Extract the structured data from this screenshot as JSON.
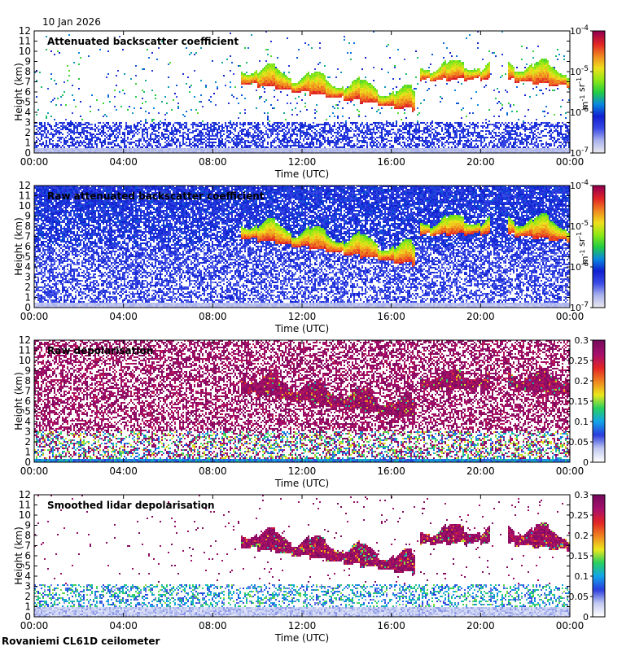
{
  "date_label": "10 Jan 2026",
  "footer_label": "Rovaniemi CL61D ceilometer",
  "colors": {
    "backscatter_scale": [
      "#e8e8ee",
      "#aab2ee",
      "#3a4ae6",
      "#1020d0",
      "#0a88e0",
      "#22cc44",
      "#8ee814",
      "#eee01c",
      "#f08820",
      "#e22424",
      "#98004e"
    ],
    "depol_scale": [
      "#ffffff",
      "#c0c8f0",
      "#2a3cdc",
      "#12a4ea",
      "#28d060",
      "#ece81c",
      "#f08420",
      "#e22424",
      "#a8106c",
      "#780a5e"
    ]
  },
  "chart_data": [
    {
      "type": "heatmap",
      "title": "Attenuated backscatter coefficient",
      "xlabel": "Time (UTC)",
      "ylabel": "Height (km)",
      "x_ticks": [
        "00:00",
        "04:00",
        "08:00",
        "12:00",
        "16:00",
        "20:00",
        "00:00"
      ],
      "y_ticks": [
        "0",
        "1",
        "2",
        "3",
        "4",
        "5",
        "6",
        "7",
        "8",
        "9",
        "10",
        "11",
        "12"
      ],
      "ylim": [
        0,
        12
      ],
      "colorbar": {
        "scale": "log",
        "range": [
          1e-07,
          0.0001
        ],
        "tick_labels": [
          "10-7",
          "10-6",
          "10-5",
          "10-4"
        ],
        "unit": "m-1 sr-1",
        "palette": "backscatter"
      },
      "background_noise": "sparse",
      "cloud_layers": [
        {
          "t_start": 9.3,
          "t_end": 17.1,
          "base_start_km": 6.9,
          "base_end_km": 4.2,
          "thickness_km": 2.3
        },
        {
          "t_start": 17.3,
          "t_end": 20.4,
          "base_start_km": 7.1,
          "base_end_km": 7.3,
          "thickness_km": 2.0
        },
        {
          "t_start": 21.2,
          "t_end": 24.0,
          "base_start_km": 7.2,
          "base_end_km": 6.5,
          "thickness_km": 2.4
        }
      ]
    },
    {
      "type": "heatmap",
      "title": "Raw attenuated backscatter coefficient",
      "xlabel": "Time (UTC)",
      "ylabel": "Height (km)",
      "x_ticks": [
        "00:00",
        "04:00",
        "08:00",
        "12:00",
        "16:00",
        "20:00",
        "00:00"
      ],
      "y_ticks": [
        "0",
        "1",
        "2",
        "3",
        "4",
        "5",
        "6",
        "7",
        "8",
        "9",
        "10",
        "11",
        "12"
      ],
      "ylim": [
        0,
        12
      ],
      "colorbar": {
        "scale": "log",
        "range": [
          1e-07,
          0.0001
        ],
        "tick_labels": [
          "10-7",
          "10-6",
          "10-5",
          "10-4"
        ],
        "unit": "m-1 sr-1",
        "palette": "backscatter"
      },
      "background_noise": "dense",
      "cloud_layers": [
        {
          "t_start": 9.3,
          "t_end": 17.1,
          "base_start_km": 6.9,
          "base_end_km": 4.2,
          "thickness_km": 2.3
        },
        {
          "t_start": 17.3,
          "t_end": 20.4,
          "base_start_km": 7.1,
          "base_end_km": 7.3,
          "thickness_km": 2.0
        },
        {
          "t_start": 21.2,
          "t_end": 24.0,
          "base_start_km": 7.2,
          "base_end_km": 6.5,
          "thickness_km": 2.4
        }
      ]
    },
    {
      "type": "heatmap",
      "title": "Raw depolarisation",
      "xlabel": "Time (UTC)",
      "ylabel": "Height (km)",
      "x_ticks": [
        "00:00",
        "04:00",
        "08:00",
        "12:00",
        "16:00",
        "20:00",
        "00:00"
      ],
      "y_ticks": [
        "0",
        "1",
        "2",
        "3",
        "4",
        "5",
        "6",
        "7",
        "8",
        "9",
        "10",
        "11",
        "12"
      ],
      "ylim": [
        0,
        12
      ],
      "colorbar": {
        "scale": "linear",
        "range": [
          0,
          0.3
        ],
        "tick_labels": [
          "0",
          "0.05",
          "0.1",
          "0.15",
          "0.2",
          "0.25",
          "0.3"
        ],
        "unit": "",
        "palette": "depol"
      },
      "background_noise": "depol_dense",
      "cloud_layers": [
        {
          "t_start": 9.3,
          "t_end": 17.1,
          "base_start_km": 6.9,
          "base_end_km": 4.2,
          "thickness_km": 2.3
        },
        {
          "t_start": 17.3,
          "t_end": 20.4,
          "base_start_km": 7.1,
          "base_end_km": 7.3,
          "thickness_km": 2.0
        },
        {
          "t_start": 21.2,
          "t_end": 24.0,
          "base_start_km": 7.2,
          "base_end_km": 6.5,
          "thickness_km": 2.4
        }
      ]
    },
    {
      "type": "heatmap",
      "title": "Smoothed lidar depolarisation",
      "xlabel": "Time (UTC)",
      "ylabel": "Height (km)",
      "x_ticks": [
        "00:00",
        "04:00",
        "08:00",
        "12:00",
        "16:00",
        "20:00",
        "00:00"
      ],
      "y_ticks": [
        "0",
        "1",
        "2",
        "3",
        "4",
        "5",
        "6",
        "7",
        "8",
        "9",
        "10",
        "11",
        "12"
      ],
      "ylim": [
        0,
        12
      ],
      "colorbar": {
        "scale": "linear",
        "range": [
          0,
          0.3
        ],
        "tick_labels": [
          "0",
          "0.05",
          "0.1",
          "0.15",
          "0.2",
          "0.25",
          "0.3"
        ],
        "unit": "",
        "palette": "depol"
      },
      "background_noise": "depol_sparse",
      "cloud_layers": [
        {
          "t_start": 9.3,
          "t_end": 17.1,
          "base_start_km": 6.9,
          "base_end_km": 4.2,
          "thickness_km": 2.3
        },
        {
          "t_start": 17.3,
          "t_end": 20.4,
          "base_start_km": 7.1,
          "base_end_km": 7.3,
          "thickness_km": 2.0
        },
        {
          "t_start": 21.2,
          "t_end": 24.0,
          "base_start_km": 7.2,
          "base_end_km": 6.5,
          "thickness_km": 2.4
        }
      ]
    }
  ]
}
